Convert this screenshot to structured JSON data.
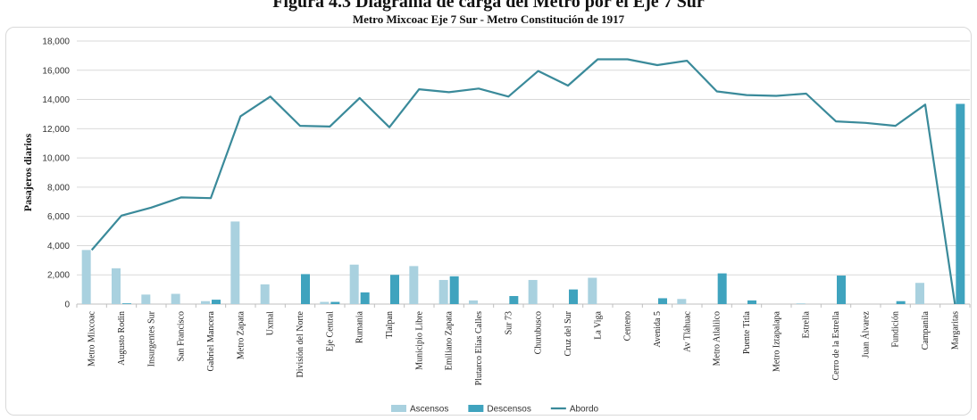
{
  "page": {
    "top_title": "Figura 4.3 Diagrama de carga del Metro por el Eje 7 Sur"
  },
  "chart_data": {
    "type": "bar+line",
    "title": "Metro Mixcoac Eje 7 Sur - Metro Constitución de 1917",
    "ylabel": "Pasajeros diarios",
    "xlabel": "",
    "ylim": [
      0,
      18000
    ],
    "yticks": [
      "0",
      "2,000",
      "4,000",
      "6,000",
      "8,000",
      "10,000",
      "12,000",
      "14,000",
      "16,000",
      "18,000"
    ],
    "grid": true,
    "legend_position": "bottom",
    "categories": [
      "Metro Mixcoac",
      "Augusto Rodin",
      "Insurgentes Sur",
      "San Francisco",
      "Gabriel Mancera",
      "Metro Zapata",
      "Uxmal",
      "División del Norte",
      "Eje Central",
      "Rumania",
      "Tlalpan",
      "Municipio Libre",
      "Emiliano Zapata",
      "Plutarco Elías Calles",
      "Sur 73",
      "Churubusco",
      "Cruz del Sur",
      "La Viga",
      "Centeno",
      "Avenida 5",
      "Av Tláhuac",
      "Metro Atlalilco",
      "Puente Titla",
      "Metro Iztapalapa",
      "Estrella",
      "Cerro de la Estrella",
      "Juan Álvarez",
      "Fundición",
      "Campanila",
      "Margaritas"
    ],
    "series": [
      {
        "name": "Ascensos",
        "type": "bar",
        "color": "#a9d1df",
        "values": [
          3700,
          2450,
          650,
          700,
          200,
          5650,
          1350,
          0,
          150,
          2700,
          0,
          2600,
          1650,
          250,
          0,
          1650,
          0,
          1800,
          0,
          0,
          350,
          0,
          0,
          0,
          50,
          0,
          0,
          0,
          1450,
          0
        ]
      },
      {
        "name": "Descensos",
        "type": "bar",
        "color": "#3fa3be",
        "values": [
          0,
          50,
          0,
          0,
          300,
          0,
          0,
          2050,
          150,
          800,
          2000,
          0,
          1900,
          0,
          550,
          0,
          1000,
          0,
          0,
          400,
          0,
          2100,
          250,
          0,
          0,
          1950,
          0,
          200,
          0,
          13700
        ]
      },
      {
        "name": "Abordo",
        "type": "line",
        "color": "#3a8a9a",
        "values": [
          3700,
          6050,
          6600,
          7300,
          7250,
          12850,
          14200,
          12200,
          12150,
          14100,
          12100,
          14700,
          14500,
          14750,
          14200,
          15950,
          14950,
          16750,
          16750,
          16350,
          16650,
          14550,
          14300,
          14250,
          14400,
          12500,
          12400,
          12200,
          13650,
          0
        ]
      }
    ]
  }
}
